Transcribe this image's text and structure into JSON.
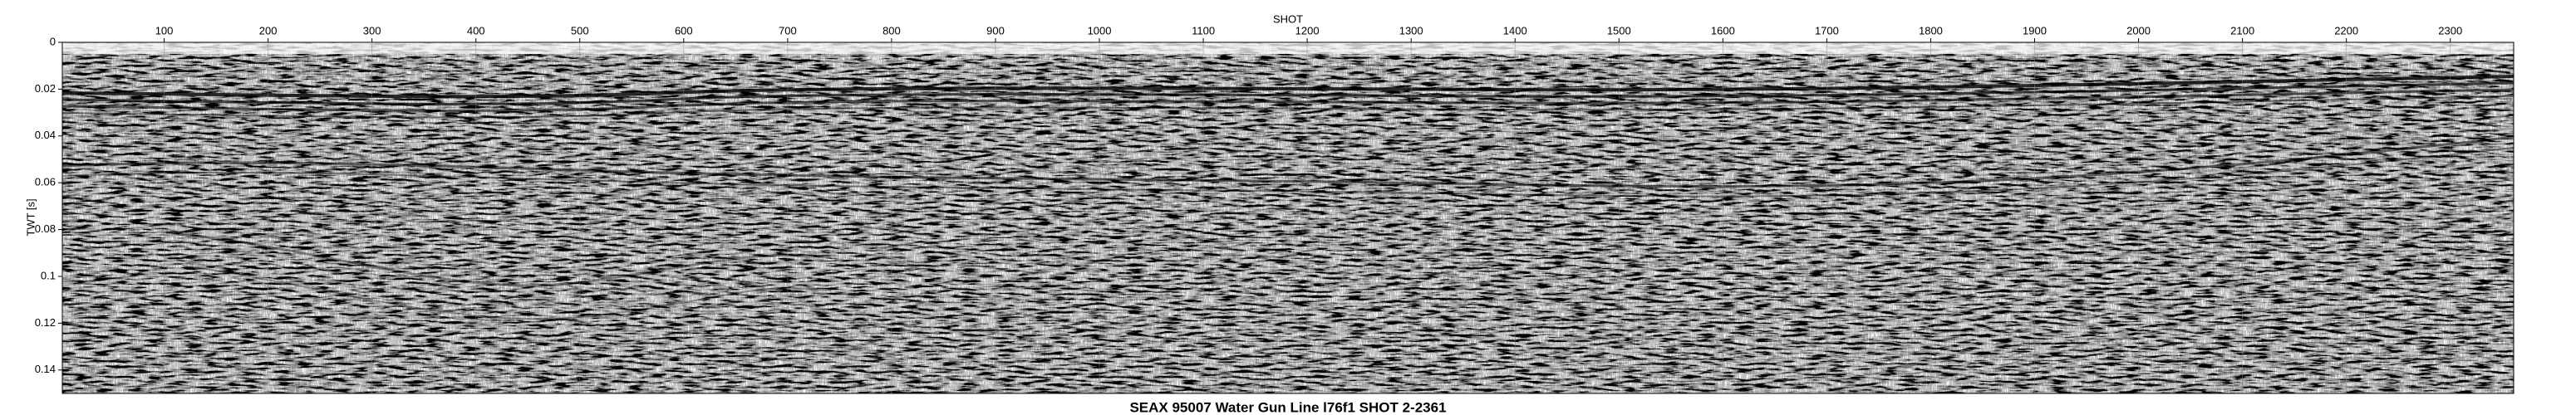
{
  "chart_data": {
    "type": "seismic",
    "title": "SEAX 95007 Water Gun Line l76f1 SHOT 2-2361",
    "xlabel": "SHOT",
    "ylabel": "TWT [s]",
    "xlim": [
      2,
      2361
    ],
    "xticks": [
      100,
      200,
      300,
      400,
      500,
      600,
      700,
      800,
      900,
      1000,
      1100,
      1200,
      1300,
      1400,
      1500,
      1600,
      1700,
      1800,
      1900,
      2000,
      2100,
      2200,
      2300
    ],
    "ylim": [
      0,
      0.15
    ],
    "yticks": [
      0,
      0.02,
      0.04,
      0.06,
      0.08,
      0.1,
      0.12,
      0.14
    ],
    "ylim_inverted": true,
    "xgrid": true
  }
}
